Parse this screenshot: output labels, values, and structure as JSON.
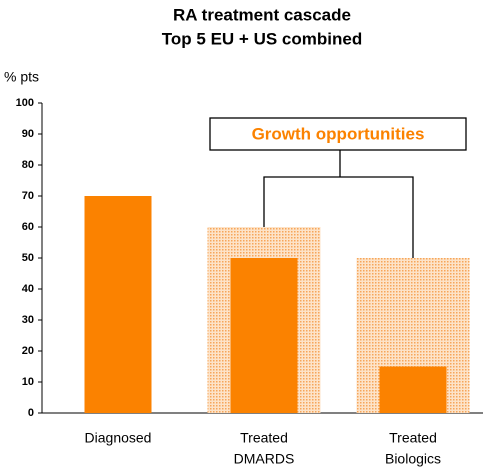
{
  "chart_data": {
    "type": "bar",
    "title": [
      "RA treatment cascade",
      "Top 5 EU + US combined"
    ],
    "y_label": "% pts",
    "annotation": "Growth opportunities",
    "categories": [
      [
        "Diagnosed"
      ],
      [
        "Treated",
        "DMARDS"
      ],
      [
        "Treated",
        "Biologics"
      ]
    ],
    "series": [
      {
        "color": "#fb8200",
        "values": [
          70,
          50,
          15
        ]
      },
      {
        "color": "#f8c08a",
        "pattern": "dotted",
        "values": [
          null,
          60,
          50
        ]
      }
    ],
    "ylim": [
      0,
      100
    ],
    "yticks": [
      0,
      10,
      20,
      30,
      40,
      50,
      60,
      70,
      80,
      90,
      100
    ],
    "grid": false
  }
}
